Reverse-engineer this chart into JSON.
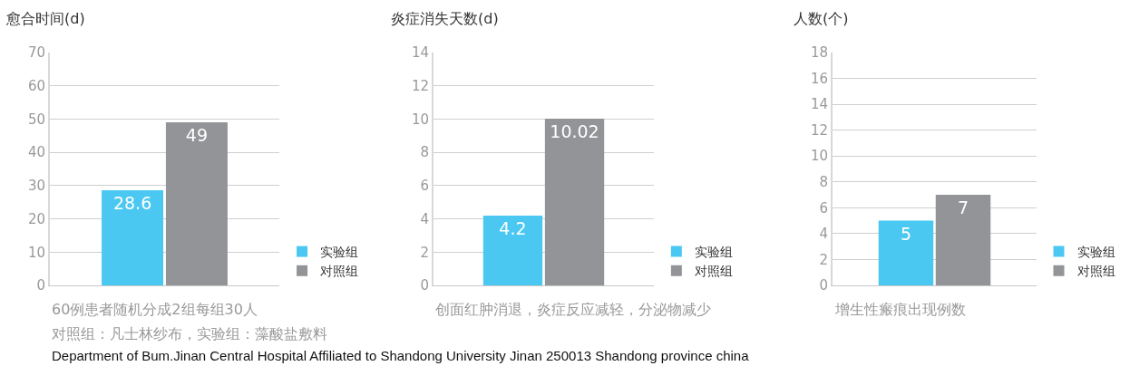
{
  "chart_data": [
    {
      "type": "bar",
      "ylabel": "愈合时间(d)",
      "xlabel": "60例患者随机分成2组每组30人",
      "categories": [
        null
      ],
      "series": [
        {
          "name": "实验组",
          "color": "#4bc8f2",
          "values": [
            28.6
          ]
        },
        {
          "name": "对照组",
          "color": "#939497",
          "values": [
            49
          ]
        }
      ],
      "ylim": [
        0,
        70
      ],
      "yticks": [
        0,
        10,
        20,
        30,
        40,
        50,
        60,
        70
      ],
      "grid": "y",
      "legend": "bottom right",
      "data_labels": true,
      "annotations": [
        "对照组：凡士林纱布，实验组：藻酸盐敷料",
        "Department of Bum.Jinan Central Hospital Affiliated to Shandong University Jinan 250013 Shandong province china"
      ]
    },
    {
      "type": "bar",
      "ylabel": "炎症消失天数(d)",
      "xlabel": "创面红肿消退，炎症反应减轻，分泌物减少",
      "categories": [
        null
      ],
      "series": [
        {
          "name": "实验组",
          "color": "#4bc8f2",
          "values": [
            4.2
          ]
        },
        {
          "name": "对照组",
          "color": "#939497",
          "values": [
            10.02
          ]
        }
      ],
      "ylim": [
        0,
        14
      ],
      "yticks": [
        0,
        2,
        4,
        6,
        8,
        10,
        12,
        14
      ],
      "grid": "y",
      "legend": "bottom right",
      "data_labels": true
    },
    {
      "type": "bar",
      "ylabel": "人数(个)",
      "xlabel": "增生性瘢痕出现例数",
      "categories": [
        null
      ],
      "series": [
        {
          "name": "实验组",
          "color": "#4bc8f2",
          "values": [
            5
          ]
        },
        {
          "name": "对照组",
          "color": "#939497",
          "values": [
            7
          ]
        }
      ],
      "ylim": [
        0,
        18
      ],
      "yticks": [
        0,
        2,
        4,
        6,
        8,
        10,
        12,
        14,
        16,
        18
      ],
      "grid": "y",
      "legend": "bottom right",
      "data_labels": true
    }
  ]
}
